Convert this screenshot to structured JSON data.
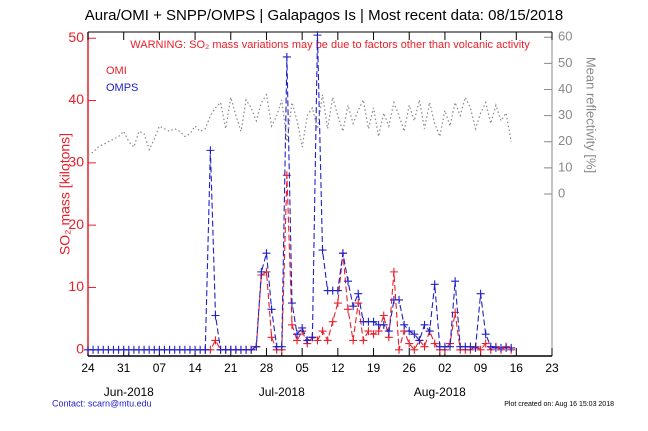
{
  "chart_data": {
    "type": "line",
    "title": "Aura/OMI + SNPP/OMPS | Galapagos Is | Most recent data: 08/15/2018",
    "annotation": "WARNING: SO₂ mass variations may be due to factors other than volcanic activity",
    "ylabel": "SO₂ mass [kilotons]",
    "y2label": "Mean reflectivity [%]",
    "footer_left": "Contact: scarn@mtu.edu",
    "footer_right": "Plot created on: Aug 16 15:03 2018",
    "x": [
      0,
      1,
      2,
      3,
      4,
      5,
      6,
      7,
      8,
      9,
      10,
      11,
      12,
      13,
      14,
      15,
      16,
      17,
      18,
      19,
      20,
      21,
      22,
      23,
      24,
      25,
      26,
      27,
      28,
      29,
      30,
      31,
      32,
      33,
      34,
      35,
      36,
      37,
      38,
      39,
      40,
      41,
      42,
      43,
      44,
      45,
      46,
      47,
      48,
      49,
      50,
      51,
      52,
      53,
      54,
      55,
      56,
      57,
      58,
      59,
      60,
      61,
      62,
      63,
      64,
      65,
      66,
      67,
      68,
      69,
      70,
      71,
      72,
      73,
      74,
      75,
      76,
      77,
      78,
      79,
      80,
      81,
      82,
      83
    ],
    "series": [
      {
        "name": "OMI",
        "color": "#e8202a",
        "marker": "plus",
        "values": [
          null,
          null,
          null,
          null,
          null,
          null,
          null,
          null,
          null,
          null,
          null,
          null,
          null,
          null,
          null,
          null,
          null,
          null,
          null,
          null,
          null,
          null,
          null,
          0,
          0,
          1.5,
          0,
          0,
          0,
          0,
          0,
          0,
          0,
          0.5,
          12,
          12.5,
          2,
          0,
          0,
          28,
          4,
          1.5,
          3,
          1,
          2,
          1.5,
          3,
          1.5,
          4.5,
          7.5,
          15.5,
          6.5,
          1.5,
          7.5,
          1.5,
          3,
          2.5,
          3,
          5.5,
          2,
          12.5,
          0,
          3,
          1,
          0,
          1.5,
          0.5,
          3,
          1,
          0,
          0,
          1,
          6,
          0,
          0,
          0,
          0.5,
          0,
          1,
          0,
          0.5,
          0,
          0.5,
          0
        ]
      },
      {
        "name": "OMPS",
        "color": "#2020c8",
        "marker": "plus",
        "values": [
          0,
          0,
          0,
          0,
          0,
          0,
          0,
          0,
          0,
          0,
          0,
          0,
          0,
          0,
          0,
          0,
          0,
          0,
          0,
          0,
          0,
          0,
          0,
          0,
          32,
          5.5,
          0,
          0,
          0,
          0,
          0,
          0,
          0,
          0.5,
          12.5,
          15.5,
          6.5,
          0.5,
          0.5,
          47,
          7.5,
          2.5,
          3.5,
          1.5,
          2,
          50.5,
          16,
          9.5,
          9.5,
          9.5,
          15.5,
          11,
          7,
          9,
          4.5,
          4.5,
          4.5,
          4,
          4,
          3,
          8,
          8,
          4,
          3,
          2.5,
          1.5,
          4,
          3,
          10.5,
          0.5,
          0.5,
          0.5,
          11,
          0.5,
          0.5,
          0.5,
          0.3,
          9,
          2.5,
          0.5,
          0.3,
          0.3,
          0.3,
          0.3
        ]
      },
      {
        "color": "#888888",
        "axis": "y2",
        "style": "dotted",
        "values": [
          15,
          16,
          18,
          19,
          20,
          21,
          22,
          24,
          20,
          18,
          24,
          23,
          17,
          21,
          26,
          25,
          24,
          25,
          24,
          22,
          23,
          26,
          24,
          25,
          30,
          33,
          35,
          25,
          37,
          30,
          24,
          36,
          33,
          28,
          35,
          38,
          26,
          30,
          36,
          20,
          35,
          28,
          18,
          30,
          33,
          25,
          38,
          25,
          37,
          30,
          24,
          34,
          27,
          32,
          36,
          25,
          33,
          22,
          31,
          26,
          35,
          30,
          24,
          34,
          28,
          36,
          25,
          35,
          27,
          22,
          32,
          26,
          35,
          30,
          37,
          33,
          25,
          31,
          35,
          27,
          34,
          28,
          31,
          20
        ]
      }
    ],
    "xlim": [
      0,
      91
    ],
    "xticks": [
      {
        "value": 0,
        "label": "24"
      },
      {
        "value": 7,
        "label": "31"
      },
      {
        "value": 14,
        "label": "07"
      },
      {
        "value": 21,
        "label": "14"
      },
      {
        "value": 28,
        "label": "21"
      },
      {
        "value": 35,
        "label": "28"
      },
      {
        "value": 42,
        "label": "05"
      },
      {
        "value": 49,
        "label": "12"
      },
      {
        "value": 56,
        "label": "19"
      },
      {
        "value": 63,
        "label": "26"
      },
      {
        "value": 70,
        "label": "02"
      },
      {
        "value": 77,
        "label": "09"
      },
      {
        "value": 84,
        "label": "16"
      },
      {
        "value": 91,
        "label": "23"
      }
    ],
    "month_labels": [
      {
        "value": 8,
        "label": "Jun-2018"
      },
      {
        "value": 38,
        "label": "Jul-2018"
      },
      {
        "value": 69,
        "label": "Aug-2018"
      }
    ],
    "ylim": [
      -1,
      51
    ],
    "yticks": [
      0,
      10,
      20,
      30,
      40,
      50
    ],
    "y2lim": [
      -62,
      62
    ],
    "y2ticks": [
      0,
      10,
      20,
      30,
      40,
      50,
      60
    ]
  }
}
